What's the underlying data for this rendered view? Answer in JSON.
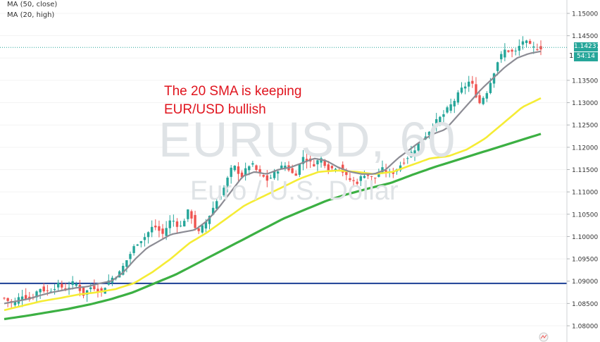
{
  "chart_data": {
    "type": "candlestick",
    "symbol_watermark": "EURUSD, 60",
    "description_watermark": "Euro / U.S. Dollar",
    "annotation": [
      "The 20 SMA is keeping",
      "EUR/USD bullish"
    ],
    "indicators": [
      {
        "label": "MA (50, close)",
        "color": "#f5ec35"
      },
      {
        "label": "MA (20, high)",
        "color": "#8c8c94"
      },
      {
        "color": "#3cb043"
      }
    ],
    "y_ticks": [
      "1.15000",
      "1.14500",
      "1.14000",
      "1.13500",
      "1.13000",
      "1.12500",
      "1.12000",
      "1.11500",
      "1.11000",
      "1.10500",
      "1.10000",
      "1.09500",
      "1.09000",
      "1.08500",
      "1.08000"
    ],
    "y_tick_values": [
      1.15,
      1.145,
      1.14,
      1.135,
      1.13,
      1.125,
      1.12,
      1.115,
      1.11,
      1.105,
      1.1,
      1.095,
      1.09,
      1.085,
      1.08
    ],
    "ylim": [
      1.0785,
      1.1513
    ],
    "horizontal_level": 1.0895,
    "last_price": "1.14237",
    "countdown": "54:14",
    "current_candle_label": "1",
    "colors": {
      "up": "#26a69a",
      "down": "#ef5350",
      "level": "#1c3f94",
      "last_price_bg": "#26a69a",
      "annotation": "#e0141e"
    },
    "close_path": [
      1.0862,
      1.0848,
      1.087,
      1.0858,
      1.0885,
      1.0876,
      1.0892,
      1.0882,
      1.0898,
      1.087,
      1.089,
      1.0875,
      1.0905,
      1.0915,
      1.095,
      1.0985,
      1.1,
      1.1025,
      1.1005,
      1.104,
      1.102,
      1.106,
      1.1005,
      1.1035,
      1.1075,
      1.111,
      1.116,
      1.1135,
      1.1165,
      1.114,
      1.1125,
      1.115,
      1.116,
      1.1135,
      1.118,
      1.116,
      1.1175,
      1.115,
      1.116,
      1.113,
      1.112,
      1.1142,
      1.1128,
      1.115,
      1.114,
      1.116,
      1.1182,
      1.1205,
      1.123,
      1.1255,
      1.1275,
      1.13,
      1.133,
      1.135,
      1.1298,
      1.133,
      1.139,
      1.142,
      1.141,
      1.144,
      1.1422,
      1.1424
    ],
    "ma20_path": [
      1.085,
      1.0855,
      1.086,
      1.0868,
      1.0875,
      1.088,
      1.0885,
      1.0888,
      1.0895,
      1.09,
      1.092,
      1.095,
      1.0975,
      1.099,
      1.1005,
      1.101,
      1.1015,
      1.1035,
      1.1065,
      1.11,
      1.1135,
      1.1145,
      1.114,
      1.115,
      1.1155,
      1.1165,
      1.1175,
      1.117,
      1.1155,
      1.1145,
      1.114,
      1.114,
      1.115,
      1.1175,
      1.1195,
      1.1215,
      1.123,
      1.124,
      1.127,
      1.13,
      1.133,
      1.1355,
      1.138,
      1.14,
      1.141,
      1.1415
    ],
    "ma50_path": [
      1.0835,
      1.0845,
      1.0855,
      1.0862,
      1.087,
      1.0875,
      1.0882,
      1.0895,
      1.092,
      1.095,
      1.0985,
      1.101,
      1.104,
      1.107,
      1.109,
      1.111,
      1.113,
      1.1145,
      1.1148,
      1.1145,
      1.114,
      1.1145,
      1.116,
      1.1175,
      1.118,
      1.1195,
      1.122,
      1.1255,
      1.129,
      1.131
    ],
    "ma100_path": [
      1.0815,
      1.0822,
      1.083,
      1.0838,
      1.0848,
      1.086,
      1.0875,
      1.0895,
      1.0915,
      1.094,
      1.0965,
      1.099,
      1.1015,
      1.104,
      1.106,
      1.108,
      1.1095,
      1.1108,
      1.112,
      1.1138,
      1.1155,
      1.117,
      1.1185,
      1.12,
      1.1215,
      1.123
    ]
  }
}
